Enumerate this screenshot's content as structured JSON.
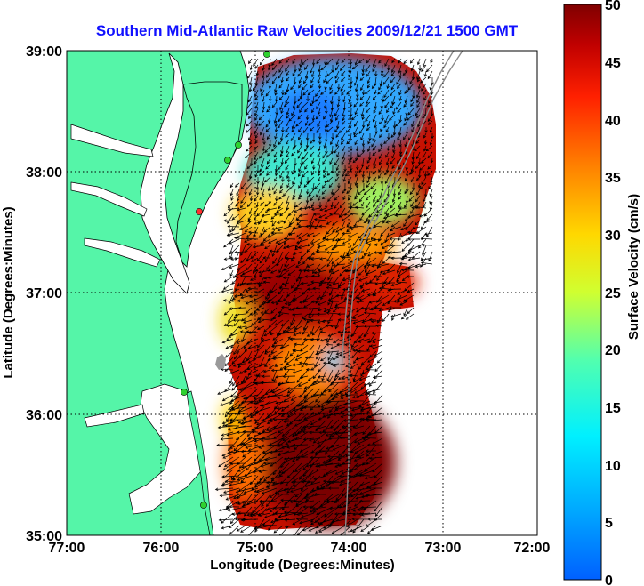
{
  "title": "Southern Mid-Atlantic Raw Velocities 2009/12/21 1500 GMT",
  "x_axis": {
    "label": "Longitude (Degrees:Minutes)",
    "ticks": [
      "77:00",
      "76:00",
      "75:00",
      "74:00",
      "73:00",
      "72:00"
    ]
  },
  "y_axis": {
    "label": "Latitude (Degrees:Minutes)",
    "ticks": [
      "39:00",
      "38:00",
      "37:00",
      "36:00",
      "35:00"
    ]
  },
  "colorbar": {
    "label": "Surface Velocity (cm/s)",
    "ticks": [
      "50",
      "45",
      "40",
      "35",
      "30",
      "25",
      "20",
      "15",
      "10",
      "5",
      "0"
    ]
  },
  "colors": {
    "land": "#55f5a8",
    "title": "#1010ff",
    "station_green": "#2fd12f",
    "station_red": "#ff3030"
  }
}
